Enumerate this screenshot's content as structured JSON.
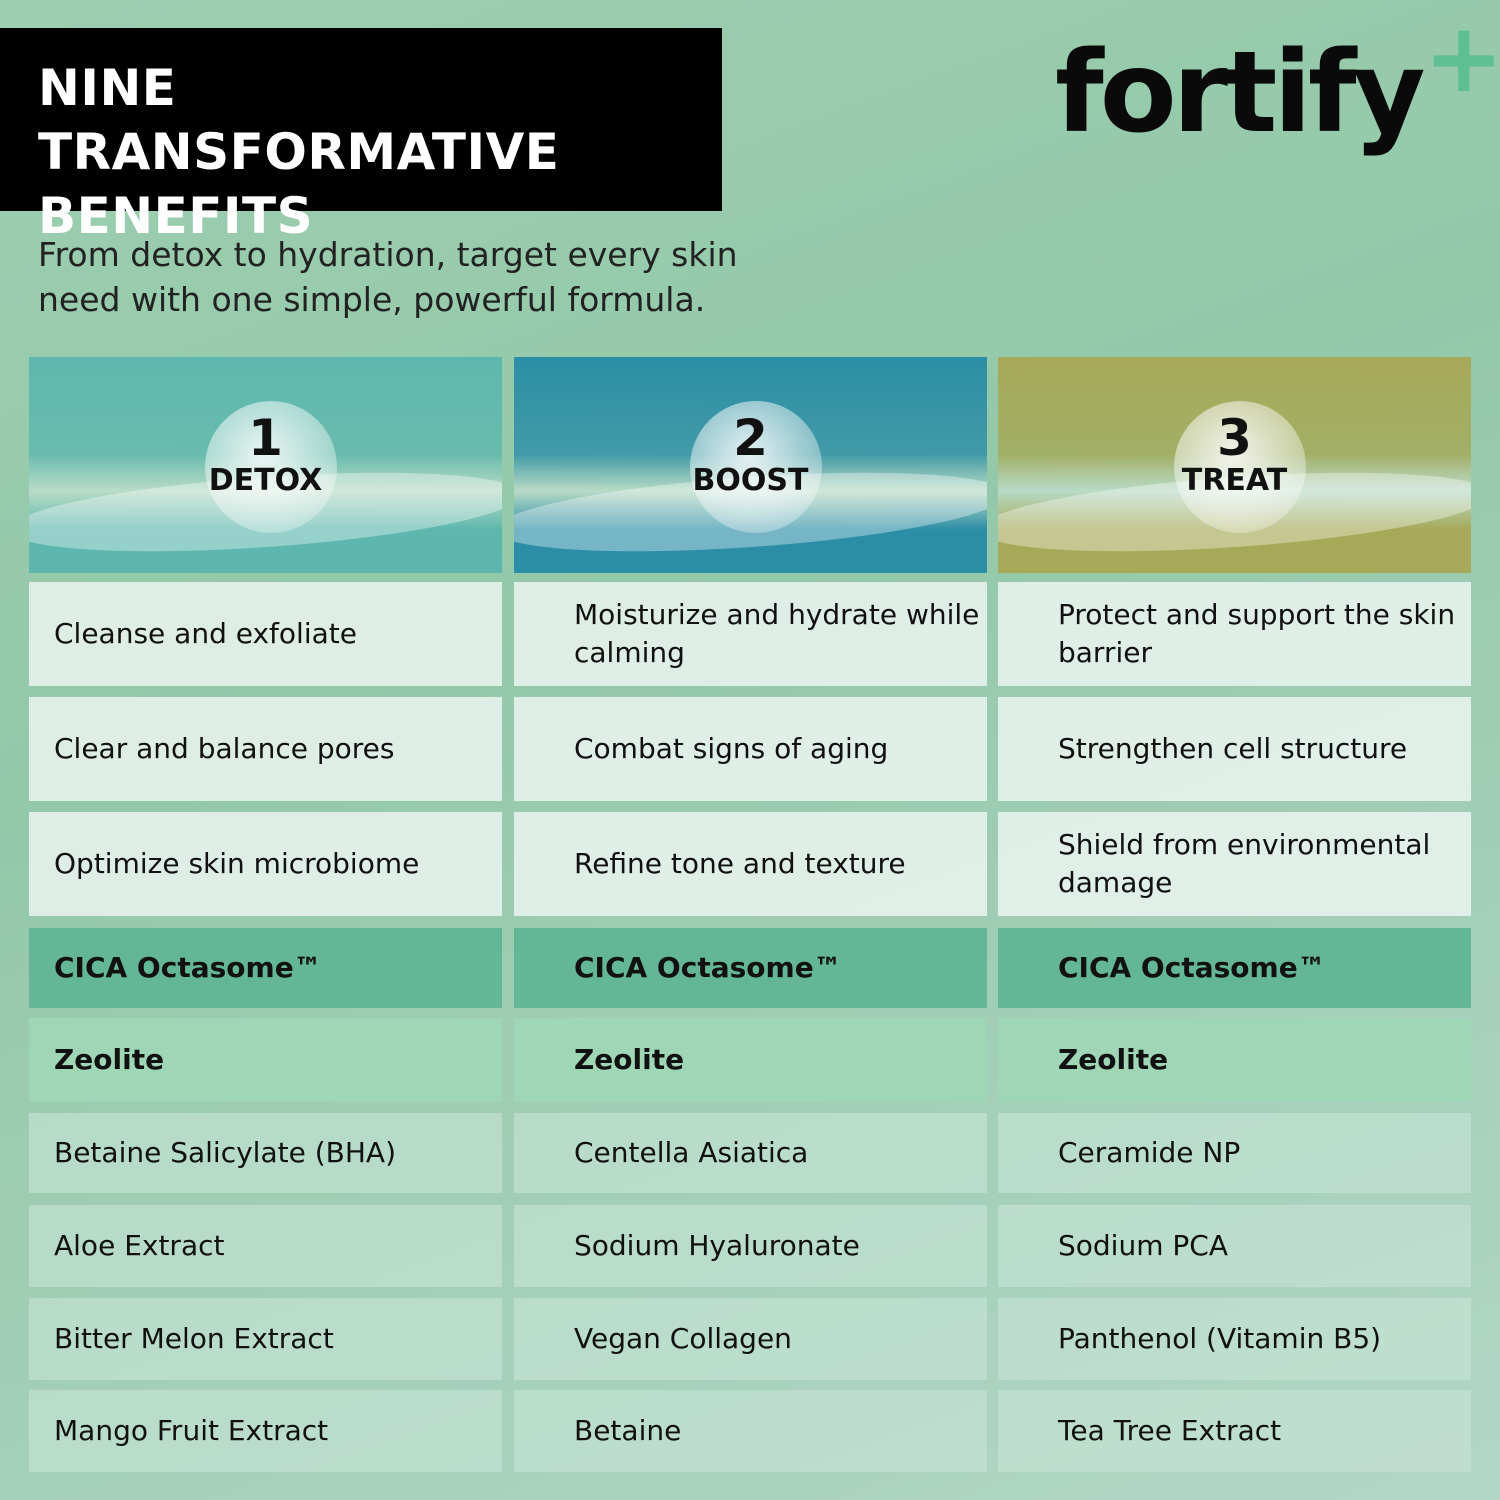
{
  "title": "NINE TRANSFORMATIVE BENEFITS",
  "logo": {
    "text": "fortify",
    "plus": "+",
    "accent": "#5fbf94"
  },
  "subtitle": "From detox to hydration, target every skin need with one simple, powerful formula.",
  "columns": [
    {
      "number": "1",
      "label": "DETOX",
      "color": "#5db7ae",
      "benefits": [
        "Cleanse and exfoliate",
        "Clear and balance pores",
        "Optimize skin microbiome"
      ],
      "key_ingredients": [
        "CICA Octasome™",
        "Zeolite"
      ],
      "ingredients": [
        "Betaine Salicylate (BHA)",
        "Aloe Extract",
        "Bitter Melon Extract",
        "Mango Fruit Extract"
      ]
    },
    {
      "number": "2",
      "label": "BOOST",
      "color": "#2c8ea6",
      "benefits": [
        "Moisturize and hydrate while calming",
        "Combat signs of aging",
        "Refine tone and texture"
      ],
      "key_ingredients": [
        "CICA Octasome™",
        "Zeolite"
      ],
      "ingredients": [
        "Centella Asiatica",
        "Sodium Hyaluronate",
        "Vegan Collagen",
        "Betaine"
      ]
    },
    {
      "number": "3",
      "label": "TREAT",
      "color": "#a6a957",
      "benefits": [
        "Protect and support the skin barrier",
        "Strengthen cell structure",
        "Shield from environmental damage"
      ],
      "key_ingredients": [
        "CICA Octasome™",
        "Zeolite"
      ],
      "ingredients": [
        "Ceramide NP",
        "Sodium PCA",
        "Panthenol (Vitamin B5)",
        "Tea Tree Extract"
      ]
    }
  ]
}
